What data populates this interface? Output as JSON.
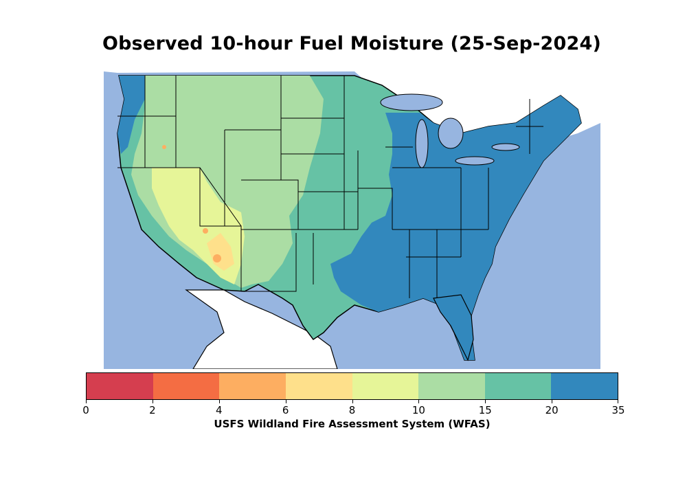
{
  "title": "Observed 10-hour Fuel Moisture (25-Sep-2024)",
  "map": {
    "water_color": "#97b5e0",
    "land_outside_color": "#ffffff",
    "classes": [
      {
        "range": [
          0,
          2
        ],
        "color": "#d53e4f"
      },
      {
        "range": [
          2,
          4
        ],
        "color": "#f46d43"
      },
      {
        "range": [
          4,
          6
        ],
        "color": "#fdae61"
      },
      {
        "range": [
          6,
          8
        ],
        "color": "#fee08b"
      },
      {
        "range": [
          8,
          10
        ],
        "color": "#e6f598"
      },
      {
        "range": [
          10,
          15
        ],
        "color": "#abdda4"
      },
      {
        "range": [
          15,
          20
        ],
        "color": "#66c2a5"
      },
      {
        "range": [
          20,
          35
        ],
        "color": "#3288bd"
      }
    ]
  },
  "colorbar": {
    "ticks": [
      "0",
      "2",
      "4",
      "6",
      "8",
      "10",
      "15",
      "20",
      "35"
    ],
    "label": "USFS Wildland Fire Assessment System (WFAS)"
  }
}
